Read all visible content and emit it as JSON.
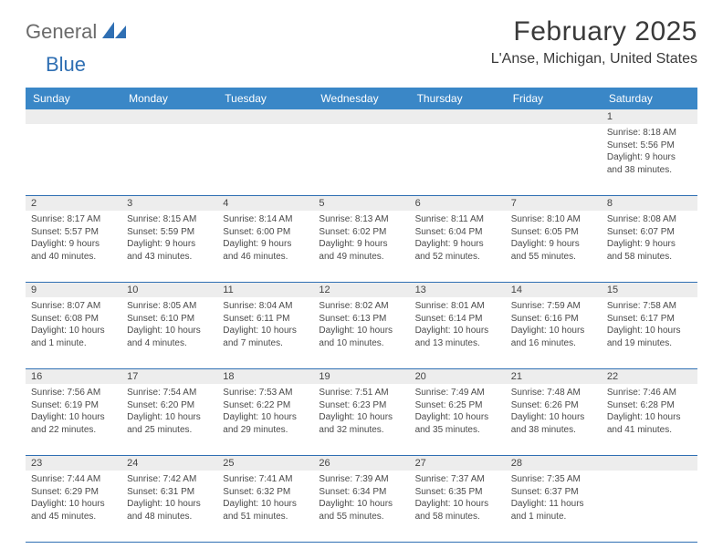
{
  "brand": {
    "general": "General",
    "blue": "Blue"
  },
  "title": {
    "month": "February 2025",
    "location": "L'Anse, Michigan, United States"
  },
  "colors": {
    "header_bg": "#3a87c7",
    "header_text": "#ffffff",
    "rule": "#2f6fb3",
    "strip_bg": "#ededed",
    "body_text": "#4a4a4a",
    "logo_gray": "#6b6b6b",
    "logo_blue": "#2f6fb3"
  },
  "day_names": [
    "Sunday",
    "Monday",
    "Tuesday",
    "Wednesday",
    "Thursday",
    "Friday",
    "Saturday"
  ],
  "weeks": [
    {
      "nums": [
        "",
        "",
        "",
        "",
        "",
        "",
        "1"
      ],
      "cells": [
        null,
        null,
        null,
        null,
        null,
        null,
        {
          "sunrise": "Sunrise: 8:18 AM",
          "sunset": "Sunset: 5:56 PM",
          "day1": "Daylight: 9 hours",
          "day2": "and 38 minutes."
        }
      ]
    },
    {
      "nums": [
        "2",
        "3",
        "4",
        "5",
        "6",
        "7",
        "8"
      ],
      "cells": [
        {
          "sunrise": "Sunrise: 8:17 AM",
          "sunset": "Sunset: 5:57 PM",
          "day1": "Daylight: 9 hours",
          "day2": "and 40 minutes."
        },
        {
          "sunrise": "Sunrise: 8:15 AM",
          "sunset": "Sunset: 5:59 PM",
          "day1": "Daylight: 9 hours",
          "day2": "and 43 minutes."
        },
        {
          "sunrise": "Sunrise: 8:14 AM",
          "sunset": "Sunset: 6:00 PM",
          "day1": "Daylight: 9 hours",
          "day2": "and 46 minutes."
        },
        {
          "sunrise": "Sunrise: 8:13 AM",
          "sunset": "Sunset: 6:02 PM",
          "day1": "Daylight: 9 hours",
          "day2": "and 49 minutes."
        },
        {
          "sunrise": "Sunrise: 8:11 AM",
          "sunset": "Sunset: 6:04 PM",
          "day1": "Daylight: 9 hours",
          "day2": "and 52 minutes."
        },
        {
          "sunrise": "Sunrise: 8:10 AM",
          "sunset": "Sunset: 6:05 PM",
          "day1": "Daylight: 9 hours",
          "day2": "and 55 minutes."
        },
        {
          "sunrise": "Sunrise: 8:08 AM",
          "sunset": "Sunset: 6:07 PM",
          "day1": "Daylight: 9 hours",
          "day2": "and 58 minutes."
        }
      ]
    },
    {
      "nums": [
        "9",
        "10",
        "11",
        "12",
        "13",
        "14",
        "15"
      ],
      "cells": [
        {
          "sunrise": "Sunrise: 8:07 AM",
          "sunset": "Sunset: 6:08 PM",
          "day1": "Daylight: 10 hours",
          "day2": "and 1 minute."
        },
        {
          "sunrise": "Sunrise: 8:05 AM",
          "sunset": "Sunset: 6:10 PM",
          "day1": "Daylight: 10 hours",
          "day2": "and 4 minutes."
        },
        {
          "sunrise": "Sunrise: 8:04 AM",
          "sunset": "Sunset: 6:11 PM",
          "day1": "Daylight: 10 hours",
          "day2": "and 7 minutes."
        },
        {
          "sunrise": "Sunrise: 8:02 AM",
          "sunset": "Sunset: 6:13 PM",
          "day1": "Daylight: 10 hours",
          "day2": "and 10 minutes."
        },
        {
          "sunrise": "Sunrise: 8:01 AM",
          "sunset": "Sunset: 6:14 PM",
          "day1": "Daylight: 10 hours",
          "day2": "and 13 minutes."
        },
        {
          "sunrise": "Sunrise: 7:59 AM",
          "sunset": "Sunset: 6:16 PM",
          "day1": "Daylight: 10 hours",
          "day2": "and 16 minutes."
        },
        {
          "sunrise": "Sunrise: 7:58 AM",
          "sunset": "Sunset: 6:17 PM",
          "day1": "Daylight: 10 hours",
          "day2": "and 19 minutes."
        }
      ]
    },
    {
      "nums": [
        "16",
        "17",
        "18",
        "19",
        "20",
        "21",
        "22"
      ],
      "cells": [
        {
          "sunrise": "Sunrise: 7:56 AM",
          "sunset": "Sunset: 6:19 PM",
          "day1": "Daylight: 10 hours",
          "day2": "and 22 minutes."
        },
        {
          "sunrise": "Sunrise: 7:54 AM",
          "sunset": "Sunset: 6:20 PM",
          "day1": "Daylight: 10 hours",
          "day2": "and 25 minutes."
        },
        {
          "sunrise": "Sunrise: 7:53 AM",
          "sunset": "Sunset: 6:22 PM",
          "day1": "Daylight: 10 hours",
          "day2": "and 29 minutes."
        },
        {
          "sunrise": "Sunrise: 7:51 AM",
          "sunset": "Sunset: 6:23 PM",
          "day1": "Daylight: 10 hours",
          "day2": "and 32 minutes."
        },
        {
          "sunrise": "Sunrise: 7:49 AM",
          "sunset": "Sunset: 6:25 PM",
          "day1": "Daylight: 10 hours",
          "day2": "and 35 minutes."
        },
        {
          "sunrise": "Sunrise: 7:48 AM",
          "sunset": "Sunset: 6:26 PM",
          "day1": "Daylight: 10 hours",
          "day2": "and 38 minutes."
        },
        {
          "sunrise": "Sunrise: 7:46 AM",
          "sunset": "Sunset: 6:28 PM",
          "day1": "Daylight: 10 hours",
          "day2": "and 41 minutes."
        }
      ]
    },
    {
      "nums": [
        "23",
        "24",
        "25",
        "26",
        "27",
        "28",
        ""
      ],
      "cells": [
        {
          "sunrise": "Sunrise: 7:44 AM",
          "sunset": "Sunset: 6:29 PM",
          "day1": "Daylight: 10 hours",
          "day2": "and 45 minutes."
        },
        {
          "sunrise": "Sunrise: 7:42 AM",
          "sunset": "Sunset: 6:31 PM",
          "day1": "Daylight: 10 hours",
          "day2": "and 48 minutes."
        },
        {
          "sunrise": "Sunrise: 7:41 AM",
          "sunset": "Sunset: 6:32 PM",
          "day1": "Daylight: 10 hours",
          "day2": "and 51 minutes."
        },
        {
          "sunrise": "Sunrise: 7:39 AM",
          "sunset": "Sunset: 6:34 PM",
          "day1": "Daylight: 10 hours",
          "day2": "and 55 minutes."
        },
        {
          "sunrise": "Sunrise: 7:37 AM",
          "sunset": "Sunset: 6:35 PM",
          "day1": "Daylight: 10 hours",
          "day2": "and 58 minutes."
        },
        {
          "sunrise": "Sunrise: 7:35 AM",
          "sunset": "Sunset: 6:37 PM",
          "day1": "Daylight: 11 hours",
          "day2": "and 1 minute."
        },
        null
      ]
    }
  ]
}
